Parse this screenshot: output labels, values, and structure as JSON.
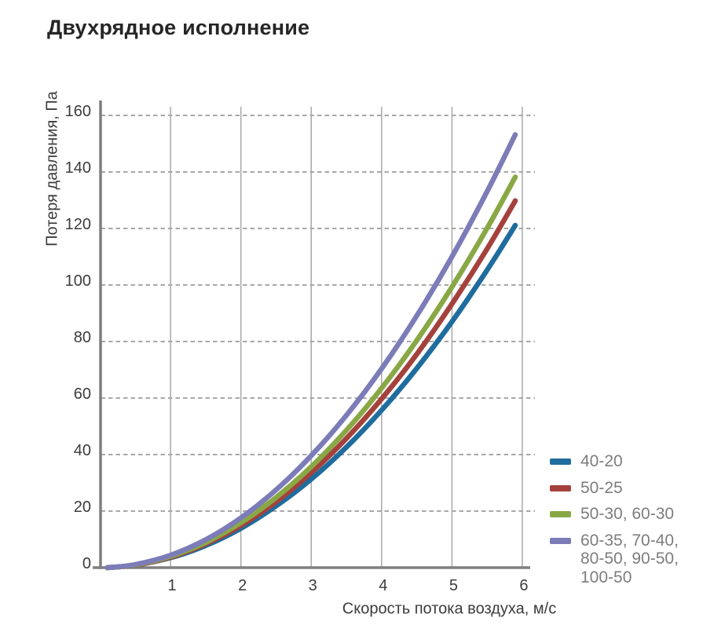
{
  "title": "Двухрядное исполнение",
  "chart_data": {
    "type": "line",
    "title": "Двухрядное исполнение",
    "xlabel": "Скорость потока воздуха, м/с",
    "ylabel": "Потеря давления, Па",
    "xlim": [
      0,
      6
    ],
    "ylim": [
      0,
      160
    ],
    "x_ticks": [
      1,
      2,
      3,
      4,
      5,
      6
    ],
    "y_ticks": [
      0,
      20,
      40,
      60,
      80,
      100,
      120,
      140,
      160
    ],
    "grid": {
      "vertical": "solid",
      "horizontal": "dashed"
    },
    "legend_position": "right-bottom",
    "x": [
      0.1,
      0.5,
      1,
      1.5,
      2,
      2.5,
      3,
      3.5,
      4,
      4.5,
      5,
      5.5,
      5.9
    ],
    "series": [
      {
        "name": "40-20",
        "color": "#1F6C9E",
        "values": [
          0,
          0.9,
          3.5,
          7.8,
          13.9,
          21.8,
          31.3,
          42.6,
          55.7,
          70.5,
          87.0,
          105.3,
          121.1
        ]
      },
      {
        "name": "50-25",
        "color": "#A5413C",
        "values": [
          0,
          0.9,
          3.7,
          8.4,
          14.9,
          23.3,
          33.6,
          45.7,
          59.7,
          75.5,
          93.3,
          112.8,
          129.8
        ]
      },
      {
        "name": "50-30, 60-30",
        "color": "#89A845",
        "values": [
          0,
          1.0,
          4.0,
          8.9,
          15.9,
          24.8,
          35.7,
          48.6,
          63.5,
          80.4,
          99.3,
          120.1,
          138.2
        ]
      },
      {
        "name": "60-35, 70-40, 80-50, 90-50, 100-50",
        "color": "#7C7CB8",
        "values": [
          0,
          1.1,
          4.4,
          9.9,
          17.6,
          27.5,
          39.6,
          53.9,
          70.4,
          89.1,
          110.0,
          133.1,
          153.2
        ]
      }
    ],
    "style": {
      "axis_color": "#7F7F7F",
      "grid_color": "#A8A8A8",
      "tick_text_color": "#3C3C3C",
      "legend_text_color": "#7D7D7D"
    }
  }
}
